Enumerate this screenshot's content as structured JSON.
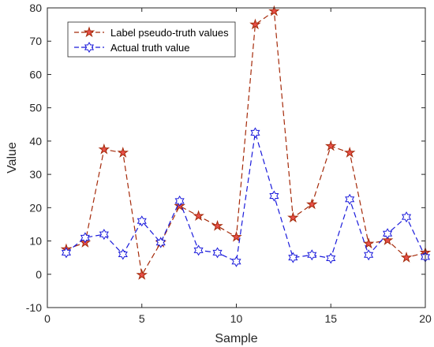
{
  "chart_data": {
    "type": "line",
    "title": "",
    "xlabel": "Sample",
    "ylabel": "Value",
    "xlim": [
      0,
      20
    ],
    "ylim": [
      -10,
      80
    ],
    "xticks": [
      0,
      5,
      10,
      15,
      20
    ],
    "yticks": [
      -10,
      0,
      10,
      20,
      30,
      40,
      50,
      60,
      70,
      80
    ],
    "grid": false,
    "legend_position": "top-left",
    "x": [
      1,
      2,
      3,
      4,
      5,
      6,
      7,
      8,
      9,
      10,
      11,
      12,
      13,
      14,
      15,
      16,
      17,
      18,
      19,
      20
    ],
    "series": [
      {
        "name": "Label pseudo-truth values",
        "color": "#a52a0a",
        "marker": "pentagram",
        "marker_fill": "#e8504a",
        "line_style": "dashed",
        "values": [
          7.5,
          9.5,
          37.5,
          36.5,
          -0.2,
          9.5,
          20.5,
          17.5,
          14.5,
          11.2,
          75,
          79,
          17,
          21,
          38.5,
          36.5,
          9.2,
          10.2,
          5,
          6.5
        ]
      },
      {
        "name": "Actual truth value",
        "color": "#1a1adb",
        "marker": "hexagram",
        "marker_fill": "#ffffff",
        "line_style": "dashed",
        "values": [
          6.5,
          11,
          12,
          6,
          16,
          9.5,
          22,
          7.2,
          6.5,
          3.8,
          42.5,
          23.5,
          5,
          5.8,
          4.8,
          22.5,
          5.8,
          12.2,
          17.2,
          5.2
        ]
      }
    ]
  }
}
